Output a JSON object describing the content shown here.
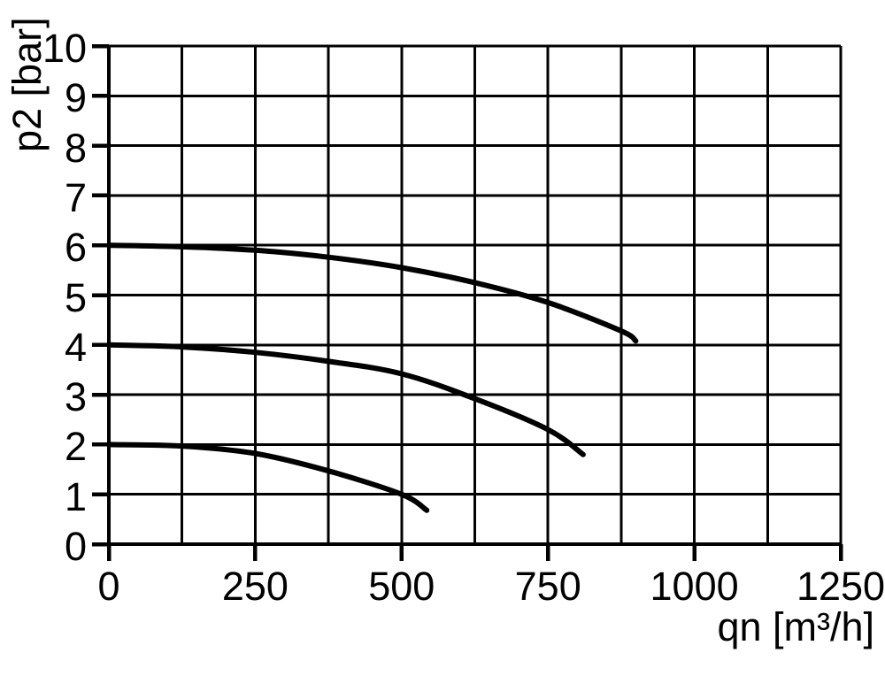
{
  "chart_data": {
    "type": "line",
    "title": "",
    "xlabel": "qn [m³/h]",
    "ylabel": "p2 [bar]",
    "xlim": [
      0,
      1250
    ],
    "ylim": [
      0,
      10
    ],
    "xticks": [
      0,
      250,
      500,
      750,
      1000,
      1250
    ],
    "yticks": [
      0,
      1,
      2,
      3,
      4,
      5,
      6,
      7,
      8,
      9,
      10
    ],
    "x_minor_step": 125,
    "y_minor_step": 1,
    "grid": true,
    "legend": false,
    "background_color": "#ffffff",
    "grid_color": "#000000",
    "curve_color": "#000000",
    "series": [
      {
        "name": "curve-start-6-bar",
        "points": [
          [
            0,
            6.0
          ],
          [
            125,
            5.97
          ],
          [
            250,
            5.9
          ],
          [
            375,
            5.76
          ],
          [
            500,
            5.55
          ],
          [
            625,
            5.25
          ],
          [
            750,
            4.85
          ],
          [
            875,
            4.28
          ],
          [
            900,
            4.08
          ]
        ]
      },
      {
        "name": "curve-start-4-bar",
        "points": [
          [
            0,
            4.0
          ],
          [
            125,
            3.96
          ],
          [
            250,
            3.85
          ],
          [
            375,
            3.67
          ],
          [
            500,
            3.42
          ],
          [
            625,
            2.92
          ],
          [
            750,
            2.3
          ],
          [
            810,
            1.8
          ]
        ]
      },
      {
        "name": "curve-start-2-bar",
        "points": [
          [
            0,
            2.0
          ],
          [
            125,
            1.97
          ],
          [
            250,
            1.82
          ],
          [
            375,
            1.47
          ],
          [
            500,
            1.0
          ],
          [
            543,
            0.68
          ]
        ]
      }
    ]
  }
}
